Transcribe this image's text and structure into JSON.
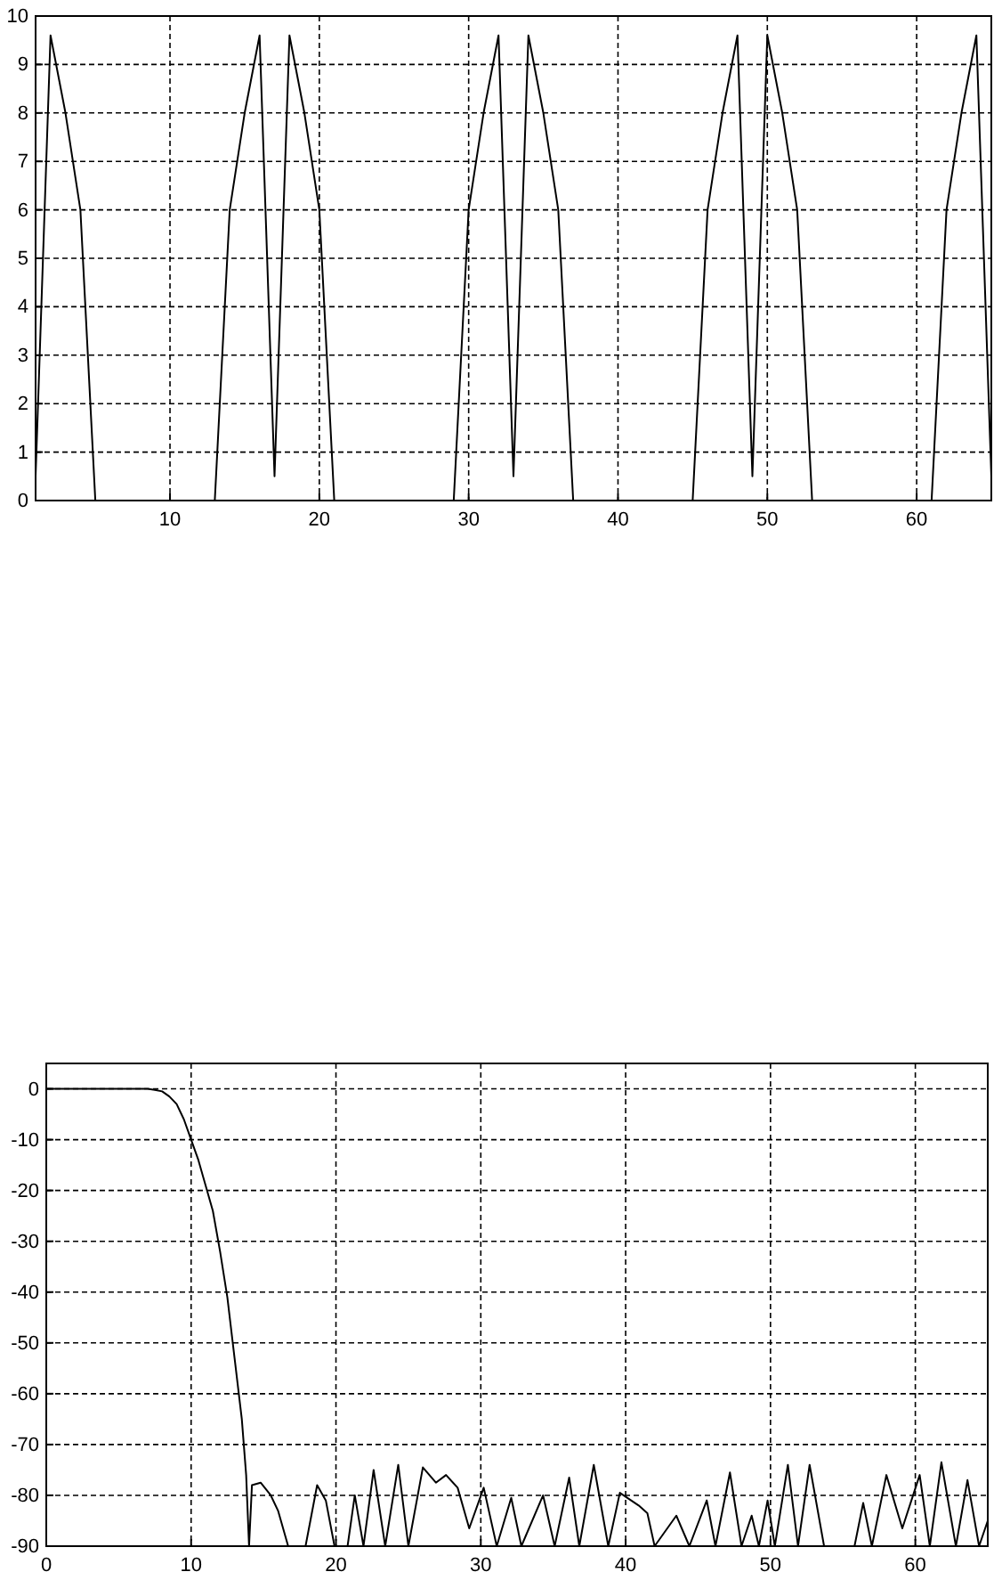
{
  "chart_data": [
    {
      "type": "line",
      "x": [
        1,
        2,
        3,
        4,
        5,
        6,
        7,
        8,
        9,
        10,
        11,
        12,
        13,
        14,
        15,
        16,
        17,
        18,
        19,
        20,
        21,
        22,
        23,
        24,
        25,
        26,
        27,
        28,
        29,
        30,
        31,
        32,
        33,
        34,
        35,
        36,
        37,
        38,
        39,
        40,
        41,
        42,
        43,
        44,
        45,
        46,
        47,
        48,
        49,
        50,
        51,
        52,
        53,
        54,
        55,
        56,
        57,
        58,
        59,
        60,
        61,
        62,
        63,
        64,
        65
      ],
      "series": [
        {
          "color": "#000000",
          "values": [
            0.5,
            9.6,
            8,
            6,
            0,
            0,
            0,
            0,
            0,
            0,
            0,
            0,
            0,
            6,
            8,
            9.6,
            0.5,
            9.6,
            8,
            6,
            0,
            0,
            0,
            0,
            0,
            0,
            0,
            0,
            0,
            6,
            8,
            9.6,
            0.5,
            9.6,
            8,
            6,
            0,
            0,
            0,
            0,
            0,
            0,
            0,
            0,
            0,
            6,
            8,
            9.6,
            0.5,
            9.6,
            8,
            6,
            0,
            0,
            0,
            0,
            0,
            0,
            0,
            0,
            0,
            6,
            8,
            9.6,
            0.5
          ]
        }
      ],
      "xlim": [
        1,
        65
      ],
      "xticks": [
        10,
        20,
        30,
        40,
        50,
        60
      ],
      "ylim": [
        0,
        10
      ],
      "yticks": [
        0,
        1,
        2,
        3,
        4,
        5,
        6,
        7,
        8,
        9,
        10
      ],
      "grid": true
    },
    {
      "type": "line",
      "x": [
        0,
        7,
        7.5,
        8,
        8.5,
        9,
        9.5,
        10,
        10.5,
        11,
        11.5,
        12,
        12.5,
        13,
        13.5,
        13.8,
        14,
        14.2,
        14.8,
        15.5,
        16,
        16.7,
        17.9,
        18.7,
        19.3,
        19.9,
        20.8,
        21.3,
        21.9,
        22.6,
        23.4,
        24.3,
        25,
        26,
        26.9,
        27.6,
        28.4,
        29.2,
        30.2,
        31.1,
        32.1,
        32.8,
        34.3,
        35.1,
        36.1,
        36.8,
        37.8,
        38.8,
        39.6,
        40.9,
        41.5,
        42,
        43.5,
        44.4,
        45.6,
        46.2,
        47.2,
        48,
        48.7,
        49.2,
        49.8,
        50.3,
        51.2,
        51.9,
        52.7,
        53.7,
        55.8,
        56.4,
        57,
        58,
        59.1,
        60.3,
        61,
        61.8,
        62.8,
        63.6,
        64.4,
        65
      ],
      "series": [
        {
          "color": "#000000",
          "values": [
            0,
            0,
            -0.2,
            -0.5,
            -1.5,
            -3,
            -6,
            -10,
            -14,
            -19,
            -24,
            -32,
            -41,
            -53,
            -65,
            -76,
            -90,
            -78,
            -77.5,
            -80,
            -83,
            -90,
            -90,
            -78,
            -81,
            -90,
            -90,
            -80,
            -90,
            -75,
            -90,
            -74,
            -90,
            -74.5,
            -77.5,
            -76,
            -78.5,
            -86.5,
            -78.5,
            -90,
            -80.5,
            -90,
            -80,
            -90,
            -76.5,
            -90,
            -74,
            -90,
            -79.5,
            -82,
            -83.5,
            -90,
            -84,
            -90,
            -81,
            -90,
            -75.5,
            -90,
            -84,
            -90,
            -81,
            -90,
            -74,
            -90,
            -74,
            -90,
            -90,
            -81.5,
            -90,
            -76,
            -86.5,
            -76,
            -90,
            -73.5,
            -90,
            -77,
            -90,
            -85
          ]
        }
      ],
      "xlim": [
        0,
        65
      ],
      "xticks": [
        0,
        10,
        20,
        30,
        40,
        50,
        60
      ],
      "ylim": [
        -90,
        5
      ],
      "yticks": [
        0,
        -10,
        -20,
        -30,
        -40,
        -50,
        -60,
        -70,
        -80,
        -90
      ],
      "grid": true
    }
  ]
}
